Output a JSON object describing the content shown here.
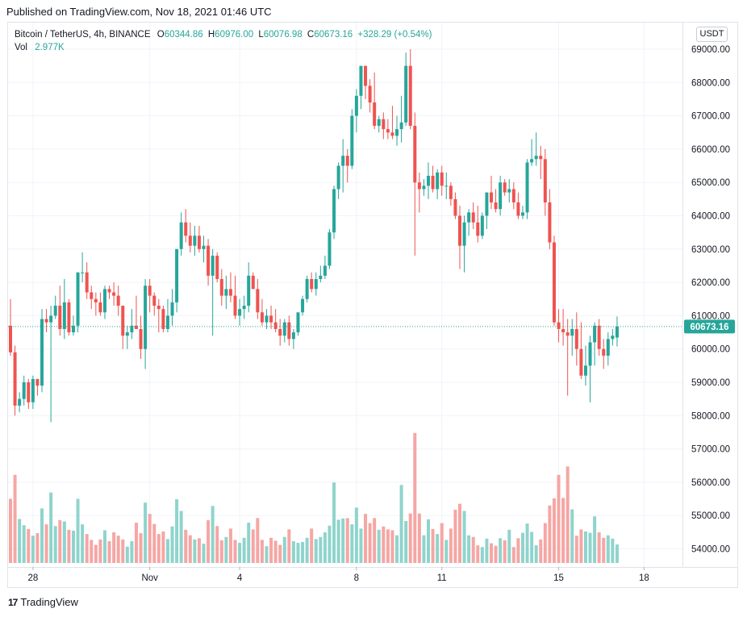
{
  "header": {
    "published": "Published on TradingView.com, Nov 18, 2021 01:46 UTC"
  },
  "legend": {
    "symbol": "Bitcoin / TetherUS, 4h, BINANCE",
    "o_label": "O",
    "o": "60344.86",
    "h_label": "H",
    "h": "60976.00",
    "l_label": "L",
    "l": "60076.98",
    "c_label": "C",
    "c": "60673.16",
    "change": "+328.29 (+0.54%)",
    "vol_label": "Vol",
    "vol": "2.977K"
  },
  "price_axis": {
    "currency": "USDT",
    "last_price_label": "60673.16"
  },
  "footer": {
    "brand": "TradingView",
    "logo_mark": "17"
  },
  "colors": {
    "up": "#26a69a",
    "down": "#ef5350",
    "vol_up": "#8fd4cc",
    "vol_down": "#f5a6a4",
    "grid": "#f0f3fa"
  },
  "chart_data": {
    "type": "candlestick",
    "interval": "4h",
    "y_ticks": [
      "69000.00",
      "68000.00",
      "67000.00",
      "66000.00",
      "65000.00",
      "64000.00",
      "63000.00",
      "62000.00",
      "61000.00",
      "60000.00",
      "59000.00",
      "58000.00",
      "57000.00",
      "56000.00",
      "55000.00",
      "54000.00"
    ],
    "ylim": [
      53600,
      69300
    ],
    "x_ticks": [
      {
        "label": "28",
        "date": "Oct 28"
      },
      {
        "label": "Nov",
        "date": "Nov 1"
      },
      {
        "label": "4",
        "date": "Nov 4"
      },
      {
        "label": "8",
        "date": "Nov 8"
      },
      {
        "label": "11",
        "date": "Nov 11"
      },
      {
        "label": "15",
        "date": "Nov 15"
      },
      {
        "label": "18",
        "date": "Nov 18"
      }
    ],
    "last_price": 60673.16,
    "candles": [
      [
        60700,
        61500,
        59800,
        59900,
        1.53
      ],
      [
        59900,
        60100,
        58000,
        58300,
        2.1
      ],
      [
        58300,
        58700,
        58100,
        58500,
        1.05
      ],
      [
        58500,
        59200,
        58300,
        59000,
        0.9
      ],
      [
        59000,
        59100,
        58200,
        58400,
        0.81
      ],
      [
        58400,
        59200,
        58200,
        59100,
        0.65
      ],
      [
        59100,
        59100,
        58600,
        58900,
        0.71
      ],
      [
        58900,
        61200,
        58700,
        60900,
        1.3
      ],
      [
        60900,
        61200,
        60500,
        60800,
        0.92
      ],
      [
        60800,
        61300,
        57800,
        61000,
        1.68
      ],
      [
        61000,
        61600,
        60900,
        61300,
        0.88
      ],
      [
        61300,
        61900,
        60400,
        60600,
        1.02
      ],
      [
        60600,
        62100,
        60300,
        61400,
        0.99
      ],
      [
        61400,
        61500,
        60400,
        60500,
        0.79
      ],
      [
        60500,
        61000,
        60400,
        60700,
        0.77
      ],
      [
        60700,
        62300,
        60500,
        62300,
        1.53
      ],
      [
        62300,
        62900,
        62000,
        62300,
        0.92
      ],
      [
        62300,
        62600,
        61500,
        61700,
        0.69
      ],
      [
        61700,
        61900,
        61200,
        61500,
        0.55
      ],
      [
        61500,
        61700,
        61000,
        61400,
        0.43
      ],
      [
        61400,
        61700,
        61000,
        61100,
        0.56
      ],
      [
        61100,
        61900,
        60900,
        61800,
        0.78
      ],
      [
        61800,
        61900,
        61500,
        61700,
        0.52
      ],
      [
        61700,
        62000,
        61300,
        61600,
        0.73
      ],
      [
        61600,
        61900,
        61000,
        61300,
        0.65
      ],
      [
        61300,
        61300,
        60000,
        60400,
        0.56
      ],
      [
        60400,
        60700,
        60000,
        60500,
        0.39
      ],
      [
        60500,
        61200,
        60300,
        60700,
        0.52
      ],
      [
        60700,
        61600,
        60600,
        60600,
        0.96
      ],
      [
        60600,
        61000,
        59700,
        60000,
        0.71
      ],
      [
        60000,
        62100,
        59400,
        61900,
        1.44
      ],
      [
        61900,
        62100,
        61100,
        61600,
        1.17
      ],
      [
        61600,
        61700,
        61000,
        61300,
        0.93
      ],
      [
        61300,
        61500,
        60500,
        61200,
        0.69
      ],
      [
        61200,
        61300,
        60500,
        60600,
        0.75
      ],
      [
        60600,
        61500,
        60500,
        61000,
        0.57
      ],
      [
        61000,
        61800,
        60700,
        61400,
        0.87
      ],
      [
        61400,
        63000,
        61100,
        63000,
        1.52
      ],
      [
        63000,
        64100,
        62800,
        63800,
        1.24
      ],
      [
        63800,
        64200,
        63200,
        63400,
        0.79
      ],
      [
        63400,
        63800,
        62900,
        63100,
        0.66
      ],
      [
        63100,
        63700,
        62800,
        63400,
        0.56
      ],
      [
        63400,
        63700,
        62900,
        63000,
        0.59
      ],
      [
        63000,
        63400,
        62600,
        63100,
        0.46
      ],
      [
        63100,
        63300,
        61900,
        62200,
        1.02
      ],
      [
        62200,
        63000,
        60400,
        62800,
        1.36
      ],
      [
        62800,
        62900,
        62000,
        62100,
        0.88
      ],
      [
        62100,
        62400,
        61300,
        61600,
        0.54
      ],
      [
        61600,
        62200,
        61200,
        61800,
        0.62
      ],
      [
        61800,
        62300,
        61400,
        61600,
        0.82
      ],
      [
        61600,
        62200,
        60900,
        61000,
        0.55
      ],
      [
        61000,
        61500,
        60700,
        61200,
        0.48
      ],
      [
        61200,
        61600,
        60900,
        61300,
        0.6
      ],
      [
        61300,
        62600,
        61100,
        62200,
        0.96
      ],
      [
        62200,
        62300,
        61800,
        61800,
        0.8
      ],
      [
        61800,
        62100,
        60900,
        61100,
        1.07
      ],
      [
        61100,
        61500,
        60700,
        60800,
        0.55
      ],
      [
        60800,
        61200,
        60600,
        61000,
        0.4
      ],
      [
        61000,
        61300,
        60600,
        60800,
        0.6
      ],
      [
        60800,
        61200,
        60500,
        60600,
        0.53
      ],
      [
        60600,
        60900,
        60100,
        60400,
        0.43
      ],
      [
        60400,
        60900,
        60200,
        60800,
        0.62
      ],
      [
        60800,
        61000,
        60100,
        60300,
        0.8
      ],
      [
        60300,
        60600,
        60000,
        60500,
        0.52
      ],
      [
        60500,
        61000,
        60400,
        61100,
        0.48
      ],
      [
        61100,
        61600,
        61000,
        61500,
        0.5
      ],
      [
        61500,
        62200,
        61400,
        62100,
        0.6
      ],
      [
        62100,
        62300,
        61700,
        61800,
        0.82
      ],
      [
        61800,
        62300,
        61600,
        62100,
        0.57
      ],
      [
        62100,
        62500,
        62000,
        62200,
        0.62
      ],
      [
        62200,
        62800,
        62100,
        62500,
        0.73
      ],
      [
        62500,
        63600,
        62400,
        63500,
        0.89
      ],
      [
        63500,
        64900,
        63300,
        64800,
        1.92
      ],
      [
        64800,
        65600,
        64500,
        65500,
        1.03
      ],
      [
        65500,
        66300,
        64700,
        65800,
        1.06
      ],
      [
        65800,
        66000,
        65000,
        65500,
        1.07
      ],
      [
        65500,
        67200,
        65400,
        67000,
        0.92
      ],
      [
        67000,
        67800,
        66500,
        67600,
        1.32
      ],
      [
        67600,
        68500,
        67200,
        68500,
        0.82
      ],
      [
        68500,
        68500,
        67500,
        67900,
        1.17
      ],
      [
        67900,
        68100,
        67100,
        67400,
        0.95
      ],
      [
        67400,
        68300,
        66600,
        66700,
        1.07
      ],
      [
        66700,
        67000,
        66500,
        66900,
        0.79
      ],
      [
        66900,
        67100,
        66300,
        66600,
        0.87
      ],
      [
        66600,
        66900,
        66300,
        66500,
        0.8
      ],
      [
        66500,
        67300,
        66300,
        66400,
        0.78
      ],
      [
        66400,
        67000,
        66100,
        66600,
        0.66
      ],
      [
        66600,
        67600,
        66200,
        66800,
        1.86
      ],
      [
        66800,
        68900,
        66700,
        68500,
        1.0
      ],
      [
        68500,
        69000,
        66600,
        66700,
        1.18
      ],
      [
        66700,
        67100,
        62800,
        65000,
        3.1
      ],
      [
        65000,
        65300,
        64100,
        64800,
        1.18
      ],
      [
        64800,
        65100,
        64600,
        64900,
        0.66
      ],
      [
        64900,
        65600,
        64500,
        65200,
        1.04
      ],
      [
        65200,
        65500,
        64700,
        64800,
        0.81
      ],
      [
        64800,
        65400,
        64500,
        65300,
        0.69
      ],
      [
        65300,
        65500,
        64600,
        64900,
        0.95
      ],
      [
        64900,
        65300,
        64500,
        64900,
        0.55
      ],
      [
        64900,
        65000,
        64300,
        64500,
        0.82
      ],
      [
        64500,
        64700,
        63900,
        64000,
        1.27
      ],
      [
        64000,
        64300,
        62400,
        63100,
        1.41
      ],
      [
        63100,
        64000,
        62300,
        63800,
        1.24
      ],
      [
        63800,
        64200,
        63400,
        64100,
        0.66
      ],
      [
        64100,
        64400,
        63600,
        63800,
        0.62
      ],
      [
        63800,
        64300,
        63200,
        63400,
        0.42
      ],
      [
        63400,
        64100,
        63300,
        64000,
        0.38
      ],
      [
        64000,
        64700,
        63600,
        64700,
        0.58
      ],
      [
        64700,
        65200,
        64200,
        64400,
        0.47
      ],
      [
        64400,
        64800,
        64100,
        64200,
        0.41
      ],
      [
        64200,
        65200,
        64000,
        65000,
        0.59
      ],
      [
        65000,
        65100,
        64600,
        64700,
        0.54
      ],
      [
        64700,
        65100,
        64400,
        64800,
        0.79
      ],
      [
        64800,
        65000,
        64200,
        64400,
        0.38
      ],
      [
        64400,
        64700,
        63900,
        64000,
        0.59
      ],
      [
        64000,
        64300,
        63900,
        64100,
        0.72
      ],
      [
        64100,
        65700,
        63900,
        65600,
        0.94
      ],
      [
        65600,
        66300,
        65500,
        65700,
        0.74
      ],
      [
        65700,
        66500,
        65500,
        65800,
        0.42
      ],
      [
        65800,
        66100,
        65100,
        65700,
        0.56
      ],
      [
        65700,
        66000,
        64000,
        64400,
        0.95
      ],
      [
        64400,
        64800,
        63000,
        63200,
        1.37
      ],
      [
        63200,
        63400,
        60700,
        60800,
        1.54
      ],
      [
        60800,
        61200,
        60200,
        60600,
        2.1
      ],
      [
        60600,
        61200,
        60100,
        60500,
        1.55
      ],
      [
        60500,
        60900,
        58600,
        60400,
        2.3
      ],
      [
        60400,
        60900,
        59800,
        60600,
        1.28
      ],
      [
        60600,
        61100,
        59500,
        60000,
        0.65
      ],
      [
        60000,
        60800,
        59100,
        59200,
        0.8
      ],
      [
        59200,
        60100,
        58900,
        59500,
        0.75
      ],
      [
        59500,
        60400,
        58400,
        60200,
        0.72
      ],
      [
        60200,
        60800,
        59500,
        60700,
        1.11
      ],
      [
        60700,
        60900,
        59800,
        60000,
        0.73
      ],
      [
        60000,
        60300,
        59400,
        59800,
        0.6
      ],
      [
        59800,
        60500,
        59500,
        60300,
        0.66
      ],
      [
        60300,
        60600,
        60100,
        60400,
        0.58
      ],
      [
        60344.86,
        60976,
        60076.98,
        60673.16,
        0.44
      ]
    ]
  }
}
